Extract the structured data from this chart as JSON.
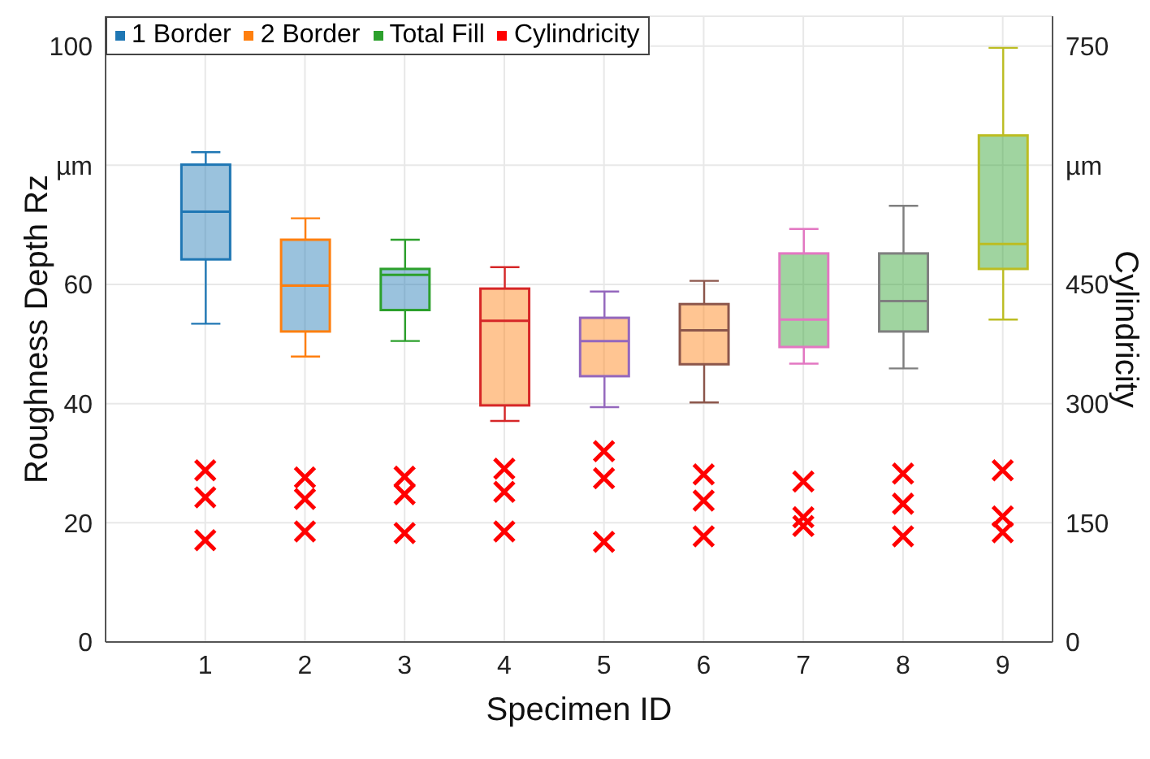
{
  "chart_data": {
    "type": "box",
    "categories": [
      "1",
      "2",
      "3",
      "4",
      "5",
      "6",
      "7",
      "8",
      "9"
    ],
    "xlabel": "Specimen ID",
    "ylabel": "Roughness Depth Rz",
    "y2label": "Cylindricity",
    "ylim": [
      0,
      105
    ],
    "yticks": [
      0,
      20,
      40,
      60,
      {
        "value": 80,
        "label": "µm"
      },
      100
    ],
    "y2lim": [
      0,
      787.5
    ],
    "y2ticks": [
      0,
      150,
      300,
      450,
      {
        "value": 600,
        "label": "µm"
      },
      750
    ],
    "grid": true,
    "legend": "top left",
    "marker": "cross",
    "series": [
      {
        "name": "1 Border",
        "color": "#1f77b4",
        "colors": [
          "#1f77b4",
          "#ff7f0e",
          "#2ca02c",
          null,
          null,
          null,
          null,
          null,
          null
        ],
        "boxes": [
          {
            "low": 53.4,
            "q1": 64.2,
            "median": 72.2,
            "q3": 80.1,
            "high": 82.2
          },
          {
            "low": 47.9,
            "q1": 52.1,
            "median": 59.8,
            "q3": 67.5,
            "high": 71.1
          },
          {
            "low": 50.5,
            "q1": 55.7,
            "median": 61.6,
            "q3": 62.6,
            "high": 67.5
          },
          null,
          null,
          null,
          null,
          null,
          null
        ]
      },
      {
        "name": "2 Border",
        "color": "#ff7f0e",
        "colors": [
          null,
          null,
          null,
          "#d62728",
          "#9467bd",
          "#8c564b",
          null,
          null,
          null
        ],
        "boxes": [
          null,
          null,
          null,
          {
            "low": 37.1,
            "q1": 39.7,
            "median": 53.9,
            "q3": 59.3,
            "high": 62.9
          },
          {
            "low": 39.4,
            "q1": 44.6,
            "median": 50.5,
            "q3": 54.4,
            "high": 58.8
          },
          {
            "low": 40.2,
            "q1": 46.6,
            "median": 52.3,
            "q3": 56.7,
            "high": 60.6
          },
          null,
          null,
          null
        ]
      },
      {
        "name": "Total Fill",
        "color": "#2ca02c",
        "colors": [
          null,
          null,
          null,
          null,
          null,
          null,
          "#e377c2",
          "#7f7f7f",
          "#bcbd22"
        ],
        "boxes": [
          null,
          null,
          null,
          null,
          null,
          null,
          {
            "low": 46.7,
            "q1": 49.5,
            "median": 54.1,
            "q3": 65.2,
            "high": 69.3
          },
          {
            "low": 45.9,
            "q1": 52.1,
            "median": 57.2,
            "q3": 65.2,
            "high": 73.2
          },
          {
            "low": 54.1,
            "q1": 62.6,
            "median": 66.8,
            "q3": 85.0,
            "high": 99.7
          }
        ]
      },
      {
        "name": "Cylindricity",
        "type": "scatter",
        "axis": "y2",
        "color": "#ff0000",
        "x": [
          "1",
          "1",
          "1",
          "2",
          "2",
          "2",
          "3",
          "3",
          "3",
          "4",
          "4",
          "4",
          "5",
          "5",
          "5",
          "6",
          "6",
          "6",
          "7",
          "7",
          "7",
          "8",
          "8",
          "8",
          "9",
          "9",
          "9"
        ],
        "values": [
          216,
          182,
          128,
          207,
          180,
          139,
          208,
          186,
          137,
          218,
          189,
          139,
          240,
          206,
          126,
          211,
          178,
          133,
          202,
          157,
          146,
          212,
          174,
          133,
          216,
          158,
          138
        ]
      }
    ]
  }
}
